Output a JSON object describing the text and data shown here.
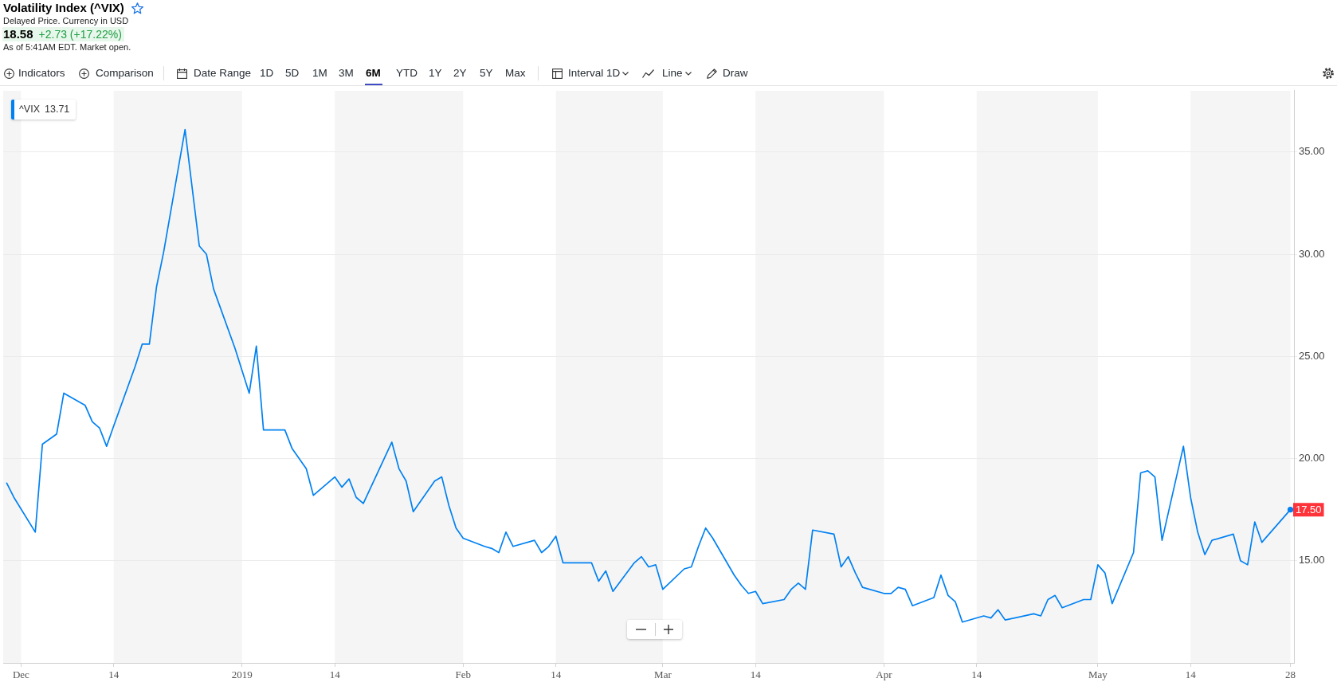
{
  "chart_data": {
    "type": "line",
    "title": "Volatility Index (^VIX)",
    "subtitle": "Delayed Price. Currency in USD",
    "annotations": [
      "18.58",
      "+2.73 (+17.22%)",
      "As of 5:41AM EDT. Market open.",
      "13.71",
      "Indicators",
      "Comparison",
      "Date Range",
      "1D",
      "5D",
      "1M",
      "3M",
      "6M",
      "YTD",
      "1Y",
      "2Y",
      "5Y",
      "Max",
      "Interval",
      "1D",
      "Line",
      "Draw"
    ],
    "x": [
      "2018-11-29",
      "2018-11-30",
      "2018-12-03",
      "2018-12-04",
      "2018-12-06",
      "2018-12-07",
      "2018-12-10",
      "2018-12-11",
      "2018-12-12",
      "2018-12-13",
      "2018-12-14",
      "2018-12-17",
      "2018-12-18",
      "2018-12-19",
      "2018-12-20",
      "2018-12-21",
      "2018-12-24",
      "2018-12-26",
      "2018-12-27",
      "2018-12-28",
      "2018-12-31",
      "2019-01-02",
      "2019-01-03",
      "2019-01-04",
      "2019-01-07",
      "2019-01-08",
      "2019-01-09",
      "2019-01-10",
      "2019-01-11",
      "2019-01-14",
      "2019-01-15",
      "2019-01-16",
      "2019-01-17",
      "2019-01-18",
      "2019-01-22",
      "2019-01-23",
      "2019-01-24",
      "2019-01-25",
      "2019-01-28",
      "2019-01-29",
      "2019-01-30",
      "2019-01-31",
      "2019-02-01",
      "2019-02-04",
      "2019-02-05",
      "2019-02-06",
      "2019-02-07",
      "2019-02-08",
      "2019-02-11",
      "2019-02-12",
      "2019-02-13",
      "2019-02-14",
      "2019-02-15",
      "2019-02-19",
      "2019-02-20",
      "2019-02-21",
      "2019-02-22",
      "2019-02-25",
      "2019-02-26",
      "2019-02-27",
      "2019-02-28",
      "2019-03-01",
      "2019-03-04",
      "2019-03-05",
      "2019-03-06",
      "2019-03-07",
      "2019-03-08",
      "2019-03-11",
      "2019-03-12",
      "2019-03-13",
      "2019-03-14",
      "2019-03-15",
      "2019-03-18",
      "2019-03-19",
      "2019-03-20",
      "2019-03-21",
      "2019-03-22",
      "2019-03-25",
      "2019-03-26",
      "2019-03-27",
      "2019-03-28",
      "2019-03-29",
      "2019-04-01",
      "2019-04-02",
      "2019-04-03",
      "2019-04-04",
      "2019-04-05",
      "2019-04-08",
      "2019-04-09",
      "2019-04-10",
      "2019-04-11",
      "2019-04-12",
      "2019-04-15",
      "2019-04-16",
      "2019-04-17",
      "2019-04-18",
      "2019-04-22",
      "2019-04-23",
      "2019-04-24",
      "2019-04-25",
      "2019-04-26",
      "2019-04-29",
      "2019-04-30",
      "2019-05-01",
      "2019-05-02",
      "2019-05-03",
      "2019-05-06",
      "2019-05-07",
      "2019-05-08",
      "2019-05-09",
      "2019-05-10",
      "2019-05-13",
      "2019-05-14",
      "2019-05-15",
      "2019-05-16",
      "2019-05-17",
      "2019-05-20",
      "2019-05-21",
      "2019-05-22",
      "2019-05-23",
      "2019-05-24",
      "2019-05-28"
    ],
    "series": [
      {
        "name": "^VIX",
        "color": "#0081f2",
        "values": [
          18.8,
          18.1,
          16.4,
          20.7,
          21.2,
          23.2,
          22.6,
          21.8,
          21.5,
          20.6,
          21.6,
          24.5,
          25.6,
          25.6,
          28.4,
          30.1,
          36.1,
          30.4,
          30.0,
          28.3,
          25.4,
          23.2,
          25.5,
          21.4,
          21.4,
          20.5,
          20.0,
          19.5,
          18.2,
          19.1,
          18.6,
          19.0,
          18.1,
          17.8,
          20.8,
          19.5,
          18.9,
          17.4,
          18.9,
          19.1,
          17.7,
          16.6,
          16.1,
          15.7,
          15.6,
          15.4,
          16.4,
          15.7,
          16.0,
          15.4,
          15.7,
          16.2,
          14.9,
          14.9,
          14.0,
          14.5,
          13.5,
          14.9,
          15.2,
          14.7,
          14.8,
          13.6,
          14.6,
          14.7,
          15.7,
          16.6,
          16.1,
          14.3,
          13.8,
          13.4,
          13.5,
          12.9,
          13.1,
          13.6,
          13.9,
          13.6,
          16.5,
          16.3,
          14.7,
          15.2,
          14.4,
          13.7,
          13.4,
          13.4,
          13.7,
          13.6,
          12.8,
          13.2,
          14.3,
          13.3,
          13.0,
          12.0,
          12.3,
          12.2,
          12.6,
          12.1,
          12.4,
          12.3,
          13.1,
          13.3,
          12.7,
          13.1,
          13.1,
          14.8,
          14.4,
          12.9,
          15.4,
          19.3,
          19.4,
          19.1,
          16.0,
          20.6,
          18.1,
          16.4,
          15.3,
          16.0,
          16.3,
          15.0,
          14.8,
          16.9,
          15.9,
          17.5
        ],
        "value_labels": [
          null,
          null,
          null,
          null,
          null,
          null,
          null,
          null,
          null,
          null,
          null,
          null,
          null,
          null,
          null,
          null,
          null,
          null,
          null,
          null,
          null,
          null,
          null,
          null,
          null,
          null,
          null,
          null,
          null,
          null,
          null,
          null,
          null,
          null,
          null,
          null,
          null,
          null,
          null,
          null,
          null,
          null,
          null,
          null,
          null,
          null,
          null,
          null,
          null,
          null,
          null,
          null,
          null,
          null,
          null,
          null,
          null,
          null,
          null,
          null,
          null,
          null,
          null,
          null,
          null,
          null,
          null,
          null,
          null,
          null,
          null,
          null,
          null,
          null,
          null,
          null,
          null,
          null,
          null,
          null,
          null,
          null,
          null,
          null,
          null,
          null,
          null,
          null,
          null,
          null,
          null,
          null,
          null,
          null,
          null,
          null,
          null,
          null,
          null,
          null,
          null,
          null,
          null,
          null,
          null,
          null,
          null,
          null,
          null,
          null,
          null,
          null,
          null,
          null,
          null,
          null,
          null,
          null,
          null,
          null,
          null,
          "17.50"
        ]
      }
    ],
    "xlim": [
      "2018-11-28T12:00",
      "2019-05-28T12:00"
    ],
    "xticks": [
      {
        "value": "2018-12-01",
        "label": "Dec"
      },
      {
        "value": "2018-12-14",
        "label": "14"
      },
      {
        "value": "2019-01-01",
        "label": "2019"
      },
      {
        "value": "2019-01-14",
        "label": "14"
      },
      {
        "value": "2019-02-01",
        "label": "Feb"
      },
      {
        "value": "2019-02-14",
        "label": "14"
      },
      {
        "value": "2019-03-01",
        "label": "Mar"
      },
      {
        "value": "2019-03-14",
        "label": "14"
      },
      {
        "value": "2019-04-01",
        "label": "Apr"
      },
      {
        "value": "2019-04-14",
        "label": "14"
      },
      {
        "value": "2019-05-01",
        "label": "May"
      },
      {
        "value": "2019-05-14",
        "label": "14"
      },
      {
        "value": "2019-05-28",
        "label": "28"
      }
    ],
    "ylim": [
      10,
      38
    ],
    "yticks": [
      {
        "value": 15,
        "label": "15.00"
      },
      {
        "value": 20,
        "label": "20.00"
      },
      {
        "value": 25,
        "label": "25.00"
      },
      {
        "value": 30,
        "label": "30.00"
      },
      {
        "value": 35,
        "label": "35.00"
      }
    ],
    "bands": [
      {
        "axis": "x",
        "from": "2018-11-28T12:00",
        "to": "2018-12-01",
        "color": "#f5f5f5"
      },
      {
        "axis": "x",
        "from": "2018-12-14",
        "to": "2019-01-01",
        "color": "#f5f5f5"
      },
      {
        "axis": "x",
        "from": "2019-01-14",
        "to": "2019-02-01",
        "color": "#f5f5f5"
      },
      {
        "axis": "x",
        "from": "2019-02-14",
        "to": "2019-03-01",
        "color": "#f5f5f5"
      },
      {
        "axis": "x",
        "from": "2019-03-14",
        "to": "2019-04-01",
        "color": "#f5f5f5"
      },
      {
        "axis": "x",
        "from": "2019-04-14",
        "to": "2019-05-01",
        "color": "#f5f5f5"
      },
      {
        "axis": "x",
        "from": "2019-05-14",
        "to": "2019-05-28",
        "color": "#f5f5f5"
      }
    ],
    "grid": "y",
    "legend": "top left"
  }
}
